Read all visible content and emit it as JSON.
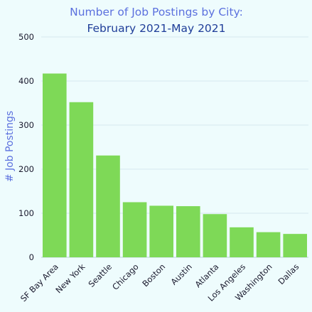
{
  "chart_data": {
    "type": "bar",
    "title": "Number of Job Postings by City:",
    "subtitle": "February 2021-May 2021",
    "xlabel": "",
    "ylabel": "# Job Postings",
    "categories": [
      "SF Bay Area",
      "New York",
      "Seattle",
      "Chicago",
      "Boston",
      "Austin",
      "Atlanta",
      "Los Angeles",
      "Washington",
      "Dallas"
    ],
    "values": [
      417,
      352,
      231,
      125,
      117,
      116,
      98,
      68,
      57,
      53
    ],
    "ylim": [
      0,
      500
    ],
    "yticks": [
      0,
      100,
      200,
      300,
      400,
      500
    ],
    "grid": true,
    "legend": "none"
  },
  "colors": {
    "background": "#eefcfd",
    "bar": "#7ed957",
    "title_line_1": "#5b70de",
    "title_line_2": "#1f3e99",
    "axis_title": "#5b70de",
    "tick_text": "#1a1a2e",
    "grid": "#d5e9ee",
    "baseline": "#b9cfd6"
  }
}
